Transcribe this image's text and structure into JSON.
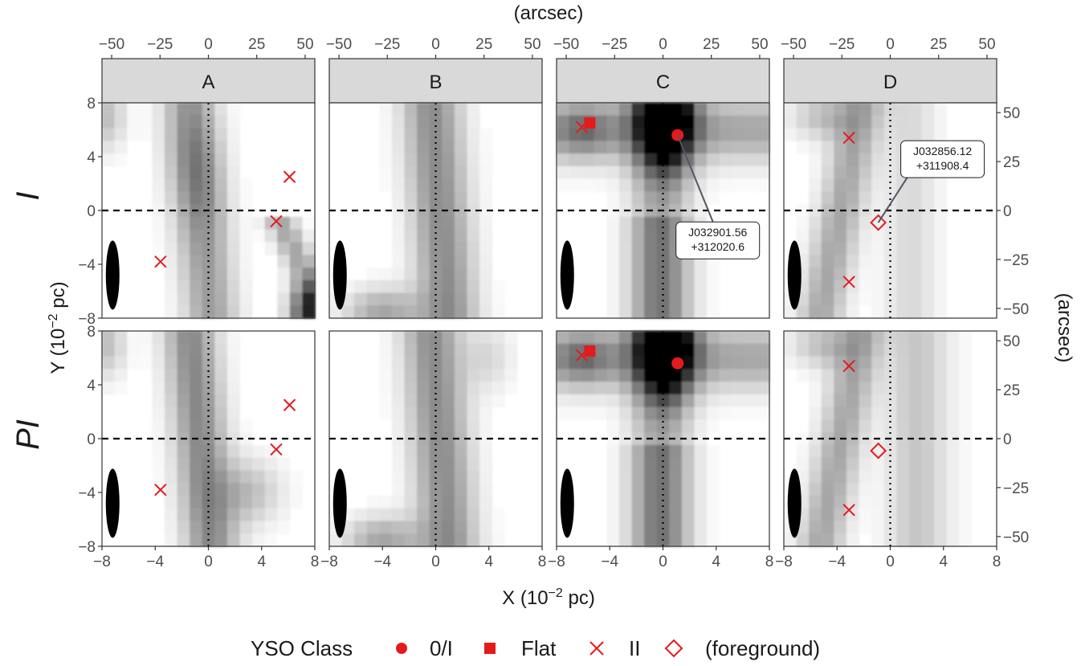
{
  "chart_data": {
    "type": "heatmap",
    "facets_x": [
      "A",
      "B",
      "C",
      "D"
    ],
    "facets_y": [
      "I",
      "PI"
    ],
    "top_axis_title": "(arcsec)",
    "right_axis_title": "(arcsec)",
    "xlabel": "X (10",
    "xlabel_sup": "−2",
    "xlabel_tail": " pc)",
    "ylabel": "Y (10",
    "ylabel_sup": "−2",
    "ylabel_tail": " pc)",
    "xlim": [
      -8,
      8
    ],
    "ylim": [
      -8,
      8
    ],
    "x_ticks": [
      "−8",
      "−4",
      "0",
      "4",
      "8"
    ],
    "y_ticks": [
      "8",
      "4",
      "0",
      "−4",
      "−8"
    ],
    "arcsec_x_ticks": [
      "−50",
      "−25",
      "0",
      "25",
      "50"
    ],
    "arcsec_y_ticks": [
      "50",
      "25",
      "0",
      "−25",
      "−50"
    ],
    "legend": {
      "title": "YSO Class",
      "entries": [
        {
          "label": "0/I",
          "shape": "circle"
        },
        {
          "label": "Flat",
          "shape": "square"
        },
        {
          "label": "II",
          "shape": "cross"
        },
        {
          "label": "(foreground)",
          "shape": "diamond"
        }
      ]
    },
    "marker_color": "#e41a1c",
    "ysos": {
      "A": [
        {
          "x": 6.1,
          "y": 2.5,
          "cls": "II"
        },
        {
          "x": 5.1,
          "y": -0.8,
          "cls": "II"
        },
        {
          "x": -3.6,
          "y": -3.8,
          "cls": "II"
        }
      ],
      "B": [],
      "C": [
        {
          "x": 1.1,
          "y": 5.6,
          "cls": "0/I",
          "label": [
            "J032901.56",
            "+312020.6"
          ]
        },
        {
          "x": -6.1,
          "y": 6.2,
          "cls": "II"
        },
        {
          "x": -5.5,
          "y": 6.5,
          "cls": "Flat"
        }
      ],
      "D": [
        {
          "x": -3.1,
          "y": 5.4,
          "cls": "II"
        },
        {
          "x": -0.9,
          "y": -0.9,
          "cls": "foreground",
          "label": [
            "J032856.12",
            "+311908.4"
          ]
        },
        {
          "x": -3.1,
          "y": -5.3,
          "cls": "II"
        }
      ]
    }
  }
}
